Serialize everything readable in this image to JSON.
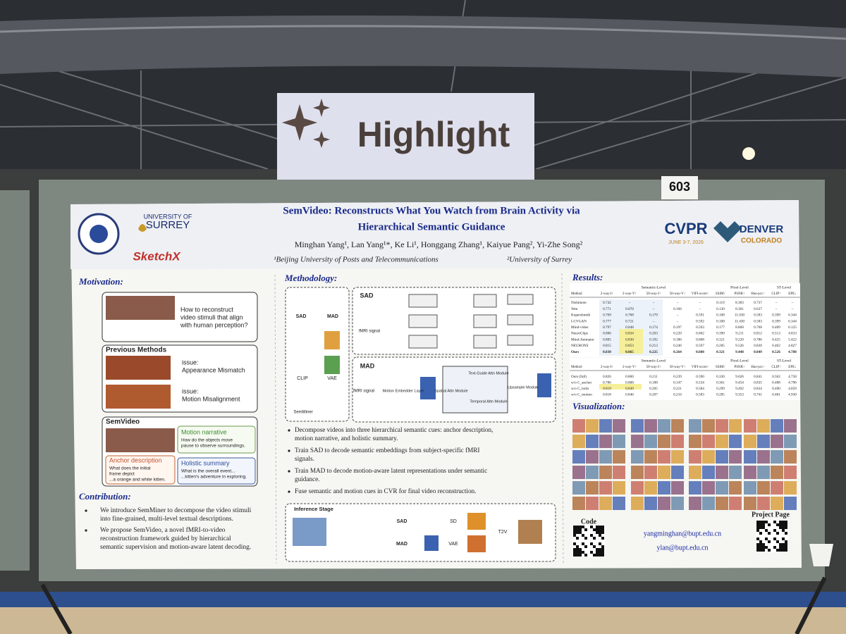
{
  "sign": "Highlight",
  "board_number": "603",
  "poster": {
    "logos": {
      "university": [
        "UNIVERSITY OF",
        "SURREY"
      ],
      "lab": "SketchX"
    },
    "conference": {
      "name": "CVPR",
      "dates": "JUNE 3-7, 2026",
      "city": "DENVER",
      "state": "COLORADO"
    },
    "title": [
      "SemVideo: Reconstructs What You Watch from Brain Activity via",
      "Hierarchical Semantic Guidance"
    ],
    "authors": "Minghan Yang¹, Lan Yang¹*, Ke Li¹, Honggang Zhang¹, Kaiyue Pang², Yi-Zhe Song²",
    "affiliations": [
      "¹Beijing University of Posts and Telecommunications",
      "²University of Surrey"
    ],
    "motivation": {
      "heading": "Motivation:",
      "question": [
        "How to reconstruct",
        "video stimuli that align",
        "with human perception?"
      ],
      "previous": {
        "heading": "Previous Methods",
        "issues": [
          [
            "issue:",
            "Appearance Mismatch"
          ],
          [
            "issue:",
            "Motion Misalignment"
          ]
        ]
      },
      "semvideo": {
        "heading": "SemVideo",
        "cues": [
          {
            "title": "Motion narrative",
            "lines": [
              "How do the objects move",
              "pause to observe surroundings."
            ]
          },
          {
            "title": "Anchor description",
            "lines": [
              "What does the initial",
              "frame depict",
              "...a orange and white kitten."
            ]
          },
          {
            "title": "Holistic summary",
            "lines": [
              "What is the overall event...",
              "...kitten's adventure in exploring."
            ]
          }
        ]
      }
    },
    "contribution": {
      "heading": "Contribution:",
      "bullets": [
        [
          "We introduce SemMiner to decompose the video stimuli",
          "into fine-grained, multi-level textual descriptions."
        ],
        [
          "We propose SemVideo, a novel fMRI-to-video",
          "reconstruction framework guided by hierarchical",
          "semantic supervision and motion-aware latent decoding."
        ]
      ]
    },
    "methodology": {
      "heading": "Methodology:",
      "labels": {
        "sad": "SAD",
        "mad": "MAD",
        "clip": "CLIP",
        "vae": "VAE",
        "semminer": "SemMiner",
        "fmri": "fMRI signal",
        "embedder": "Motion Embedder Layer",
        "text_attn": "Text-Guide Attn Module",
        "spatial_attn": "Spatial Attn Module",
        "temporal_attn": "Temporal Attn Module",
        "upsample": "Upsample Module",
        "inference": "Inference Stage",
        "sd": "SD",
        "t2v": "T2V"
      },
      "bullets": [
        [
          "Decompose videos into three hierarchical semantic cues: anchor description,",
          "motion narrative, and holistic summary."
        ],
        [
          "Train SAD to decode semantic embeddings from subject-specific fMRI",
          "signals."
        ],
        [
          "Train MAD to decode motion-aware latent representations under semantic",
          "guidance."
        ],
        [
          "Fuse semantic and motion cues in CVR for final video reconstruction."
        ]
      ]
    },
    "results": {
      "heading": "Results:",
      "groups": [
        "Semantic-Level",
        "Pixel-Level",
        "ST-Level"
      ],
      "columns": [
        "Method",
        "2-way-I↑",
        "2-way-V↑",
        "50-way-I↑",
        "50-way-V↑",
        "VIFI-score↑",
        "SSIM↑",
        "PSNR↑",
        "Hue-pcc↑",
        "CLIP↑",
        "EPE↓"
      ],
      "table1": [
        [
          "Nishimoto",
          "0.742",
          "–",
          "–",
          "–",
          "–",
          "0.119",
          "8.383",
          "0.737",
          "–",
          "–"
        ],
        [
          "Wen",
          "0.771",
          "0.070",
          "–",
          "0.166",
          "–",
          "0.130",
          "8.301",
          "0.637",
          "–",
          "–"
        ],
        [
          "Kupershmidt",
          "0.769",
          "0.768",
          "0.179",
          "–",
          "0.591",
          "0.108",
          "11.030",
          "0.583",
          "0.399",
          "6.344"
        ],
        [
          "f-CVGAN",
          "0.777",
          "0.721",
          "–",
          "–",
          "0.592",
          "0.108",
          "11.430",
          "0.583",
          "0.399",
          "6.344"
        ],
        [
          "Mind-video",
          "0.797",
          "0.848",
          "0.174",
          "0.197",
          "0.593",
          "0.177",
          "8.868",
          "0.768",
          "0.409",
          "6.125"
        ],
        [
          "NeuroClips",
          "0.806",
          "0.834",
          "0.203",
          "0.220",
          "0.602",
          "0.390",
          "9.211",
          "0.812",
          "0.513",
          "4.833"
        ],
        [
          "Mind-Animator",
          "0.805",
          "0.830",
          "0.192",
          "0.186",
          "0.608",
          "0.321",
          "9.220",
          "0.786",
          "0.425",
          "5.422"
        ],
        [
          "NEURONS",
          "0.815",
          "0.853",
          "0.213",
          "0.246",
          "0.597",
          "0.285",
          "9.526",
          "0.830",
          "0.402",
          "4.827"
        ],
        [
          "Ours",
          "0.838",
          "0.865",
          "0.225",
          "0.264",
          "0.608",
          "0.321",
          "9.448",
          "0.849",
          "0.526",
          "4.788"
        ]
      ],
      "table2": [
        [
          "Ours (full)",
          "0.826",
          "0.860",
          "0.211",
          "0.239",
          "0.590",
          "0.330",
          "9.626",
          "0.841",
          "0.502",
          "4.758"
        ],
        [
          "w/o C_anchor",
          "0.786",
          "0.808",
          "0.188",
          "0.147",
          "0.534",
          "0.361",
          "9.454",
          "0.835",
          "0.488",
          "4.796"
        ],
        [
          "w/o C_holis",
          "0.819",
          "0.849",
          "0.205",
          "0.221",
          "0.584",
          "0.299",
          "9.492",
          "0.834",
          "0.490",
          "4.859"
        ],
        [
          "w/o C_motion",
          "0.818",
          "0.846",
          "0.207",
          "0.216",
          "0.583",
          "0.285",
          "9.353",
          "0.741",
          "0.481",
          "4.930"
        ]
      ]
    },
    "visualization": {
      "heading": "Visualization:"
    },
    "links": {
      "code": "Code",
      "project": "Project Page",
      "emails": [
        "yangminghan@bupt.edu.cn",
        "ylan@bupt.edu.cn"
      ]
    }
  }
}
